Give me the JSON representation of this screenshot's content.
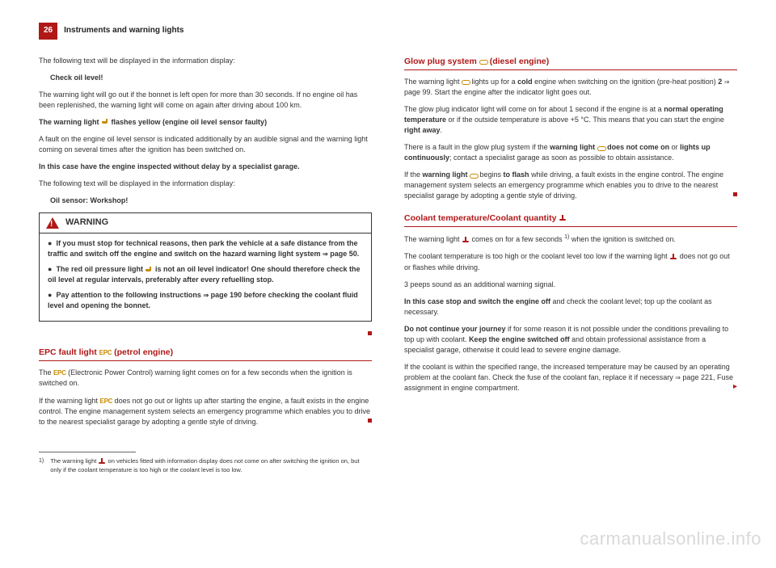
{
  "page": {
    "number": "26",
    "header": "Instruments and warning lights"
  },
  "left": {
    "p1": "The following text will be displayed in the information display:",
    "check_oil": "Check oil level!",
    "p2": "The warning light will go out if the bonnet is left open for more than 30 seconds. If no engine oil has been replenished, the warning light will come on again after driving about 100 km.",
    "p3a": "The warning light ",
    "p3b": " flashes yellow (engine oil level sensor faulty)",
    "p4": "A fault on the engine oil level sensor is indicated additionally by an audible signal and the warning light coming on several times after the ignition has been switched on.",
    "p5": "In this case have the engine inspected without delay by a specialist garage.",
    "p6": "The following text will be displayed in the information display:",
    "oil_sensor": "Oil sensor: Workshop!",
    "warning": {
      "title": "WARNING",
      "b1": "If you must stop for technical reasons, then park the vehicle at a safe distance from the traffic and switch off the engine and switch on the hazard warning light system ",
      "b1_ref": "page 50.",
      "b2a": "The red oil pressure light ",
      "b2b": " is not an oil level indicator! One should therefore check the oil level at regular intervals, preferably after every refuelling stop.",
      "b3a": "Pay attention to the following instructions ",
      "b3_ref": "page 190",
      "b3b": " before checking the coolant fluid level and opening the bonnet."
    },
    "epc_heading_a": "EPC fault light ",
    "epc_heading_b": " (petrol engine)",
    "epc_label": "EPC",
    "epc_p1a": "The ",
    "epc_p1b": " (Electronic Power Control) warning light comes on for a few seconds when the ignition is switched on.",
    "epc_p2a": "If the warning light ",
    "epc_p2b": " does not go out or lights up after starting the engine, a fault exists in the engine control. The engine management system selects an emergency programme which enables you to drive to the nearest specialist garage by adopting a gentle style of driving.",
    "footnote_num": "1)",
    "footnote_a": "The warning light ",
    "footnote_b": " on vehicles fitted with information display does not come on after switching the ignition on, but only if the coolant temperature is too high or the coolant level is too low."
  },
  "right": {
    "glow_heading_a": "Glow plug system ",
    "glow_heading_b": " (diesel engine)",
    "g_p1a": "The warning light ",
    "g_p1b": " lights up for a ",
    "g_p1_cold": "cold",
    "g_p1c": " engine when switching on the ignition (pre-heat position) ",
    "g_p1_pos": "2",
    "g_p1_ref": "page 99",
    "g_p1d": ". Start the engine after the indicator light goes out.",
    "g_p2a": "The glow plug indicator light will come on for about 1 second if the engine is at a ",
    "g_p2_normal": "normal operating temperature",
    "g_p2b": " or if the outside temperature is above +5 °C. This means that you can start the engine ",
    "g_p2_right": "right away",
    "g_p2c": ".",
    "g_p3a": "There is a fault in the glow plug system if the ",
    "g_p3_wl": "warning light ",
    "g_p3_dnc": " does not come on",
    "g_p3b": " or ",
    "g_p3_luc": "lights up continuously",
    "g_p3c": "; contact a specialist garage as soon as possible to obtain assistance.",
    "g_p4a": "If the ",
    "g_p4_wl": "warning light ",
    "g_p4b": " begins ",
    "g_p4_flash": "to flash",
    "g_p4c": " while driving, a fault exists in the engine control. The engine management system selects an emergency programme which enables you to drive to the nearest specialist garage by adopting a gentle style of driving.",
    "cool_heading_a": "Coolant temperature/Coolant quantity ",
    "c_p1a": "The warning light ",
    "c_p1b": " comes on for a few seconds ",
    "c_p1_fn": "1)",
    "c_p1c": " when the ignition is switched on.",
    "c_p2a": "The coolant temperature is too high or the coolant level too low if the warning light ",
    "c_p2b": " does not go out or flashes while driving.",
    "c_p3": "3 peeps sound as an additional warning signal.",
    "c_p4a": "In this case stop and switch the engine off",
    "c_p4b": " and check the coolant level; top up the coolant as necessary.",
    "c_p5a": "Do not continue your journey",
    "c_p5b": " if for some reason it is not possible under the conditions prevailing to top up with coolant. ",
    "c_p5c": "Keep the engine switched off",
    "c_p5d": " and obtain professional assistance from a specialist garage, otherwise it could lead to severe engine damage.",
    "c_p6a": "If the coolant is within the specified range, the increased temperature may be caused by an operating problem at the coolant fan. Check the fuse of the coolant fan, replace it if necessary ",
    "c_p6_ref": "page 221",
    "c_p6b": ", Fuse assignment in engine compartment."
  },
  "watermark": "carmanualsonline.info",
  "colors": {
    "accent": "#b01818",
    "amber": "#c98a00",
    "text": "#333333",
    "watermark": "#d9d9d9"
  }
}
